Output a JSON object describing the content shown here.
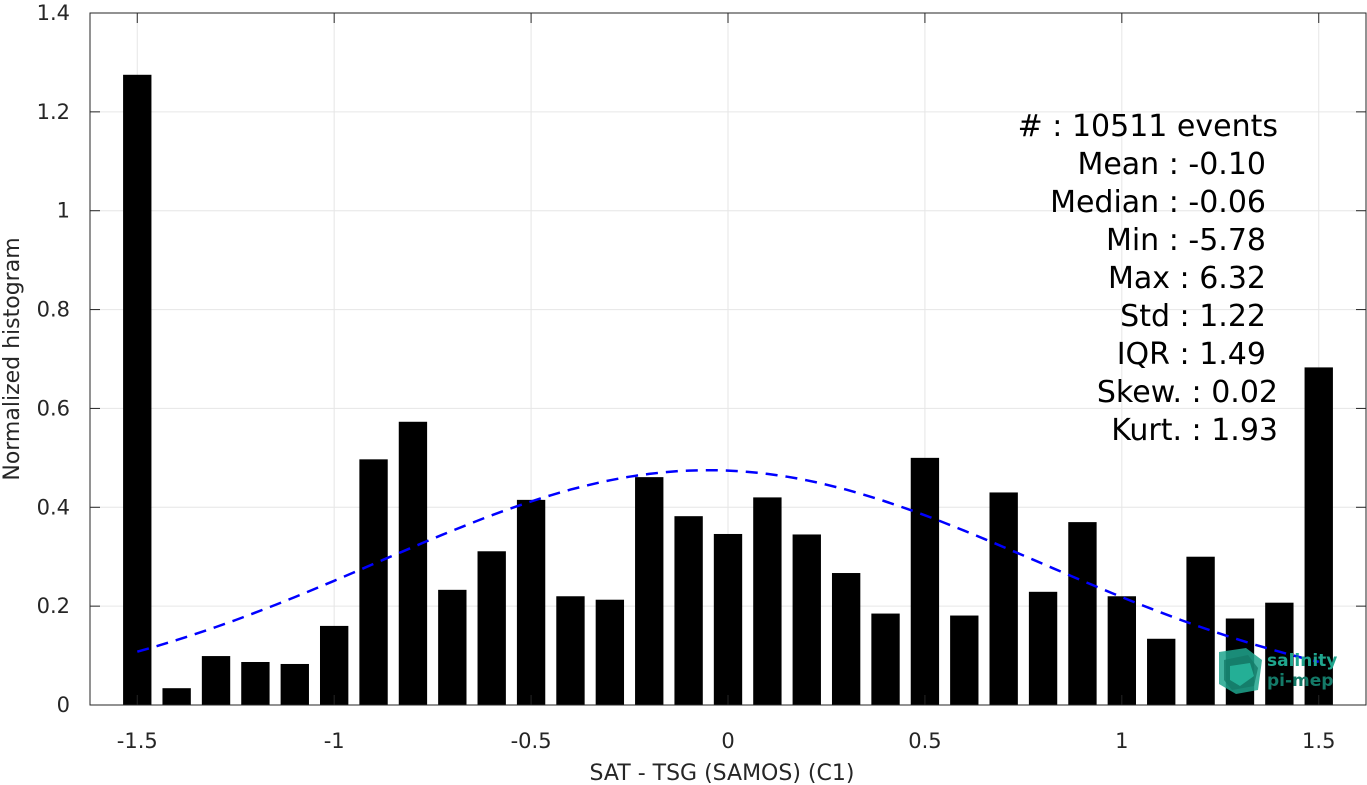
{
  "chart_data": {
    "type": "bar",
    "xlabel": "SAT - TSG (SAMOS) (C1)",
    "ylabel": "Normalized histogram",
    "xlim": [
      -1.62,
      1.62
    ],
    "ylim": [
      0,
      1.4
    ],
    "xticks": [
      -1.5,
      -1,
      -0.5,
      0,
      0.5,
      1,
      1.5
    ],
    "xtick_labels": [
      "-1.5",
      "-1",
      "-0.5",
      "0",
      "0.5",
      "1",
      "1.5"
    ],
    "yticks": [
      0,
      0.2,
      0.4,
      0.6,
      0.8,
      1,
      1.2,
      1.4
    ],
    "ytick_labels": [
      "0",
      "0.2",
      "0.4",
      "0.6",
      "0.8",
      "1",
      "1.2",
      "1.4"
    ],
    "grid": true,
    "bar_width": 0.072,
    "bar_color": "#000000",
    "x": [
      -1.5,
      -1.4,
      -1.3,
      -1.2,
      -1.1,
      -1.0,
      -0.9,
      -0.8,
      -0.7,
      -0.6,
      -0.5,
      -0.4,
      -0.3,
      -0.2,
      -0.1,
      0.0,
      0.1,
      0.2,
      0.3,
      0.4,
      0.5,
      0.6,
      0.7,
      0.8,
      0.9,
      1.0,
      1.1,
      1.2,
      1.3,
      1.4,
      1.5
    ],
    "values": [
      1.275,
      0.034,
      0.099,
      0.087,
      0.083,
      0.16,
      0.497,
      0.573,
      0.233,
      0.311,
      0.415,
      0.22,
      0.213,
      0.461,
      0.382,
      0.346,
      0.42,
      0.345,
      0.267,
      0.185,
      0.5,
      0.181,
      0.43,
      0.229,
      0.37,
      0.22,
      0.134,
      0.3,
      0.175,
      0.207,
      0.683
    ],
    "fit_curve": {
      "style": "dashed",
      "color": "#0000ff",
      "mean": -0.05,
      "std": 0.842,
      "x_range": [
        -1.5,
        1.5
      ]
    },
    "annotations": [
      "#  : 10511 events",
      "Mean : -0.10",
      "Median : -0.06",
      "Min : -5.78",
      "Max : 6.32",
      "Std : 1.22",
      "IQR : 1.49",
      "Skew. : 0.02",
      "Kurt. : 1.93"
    ]
  },
  "logo": {
    "line1": "salinity",
    "line2": "pi-mep",
    "color": "#1fa58d"
  }
}
